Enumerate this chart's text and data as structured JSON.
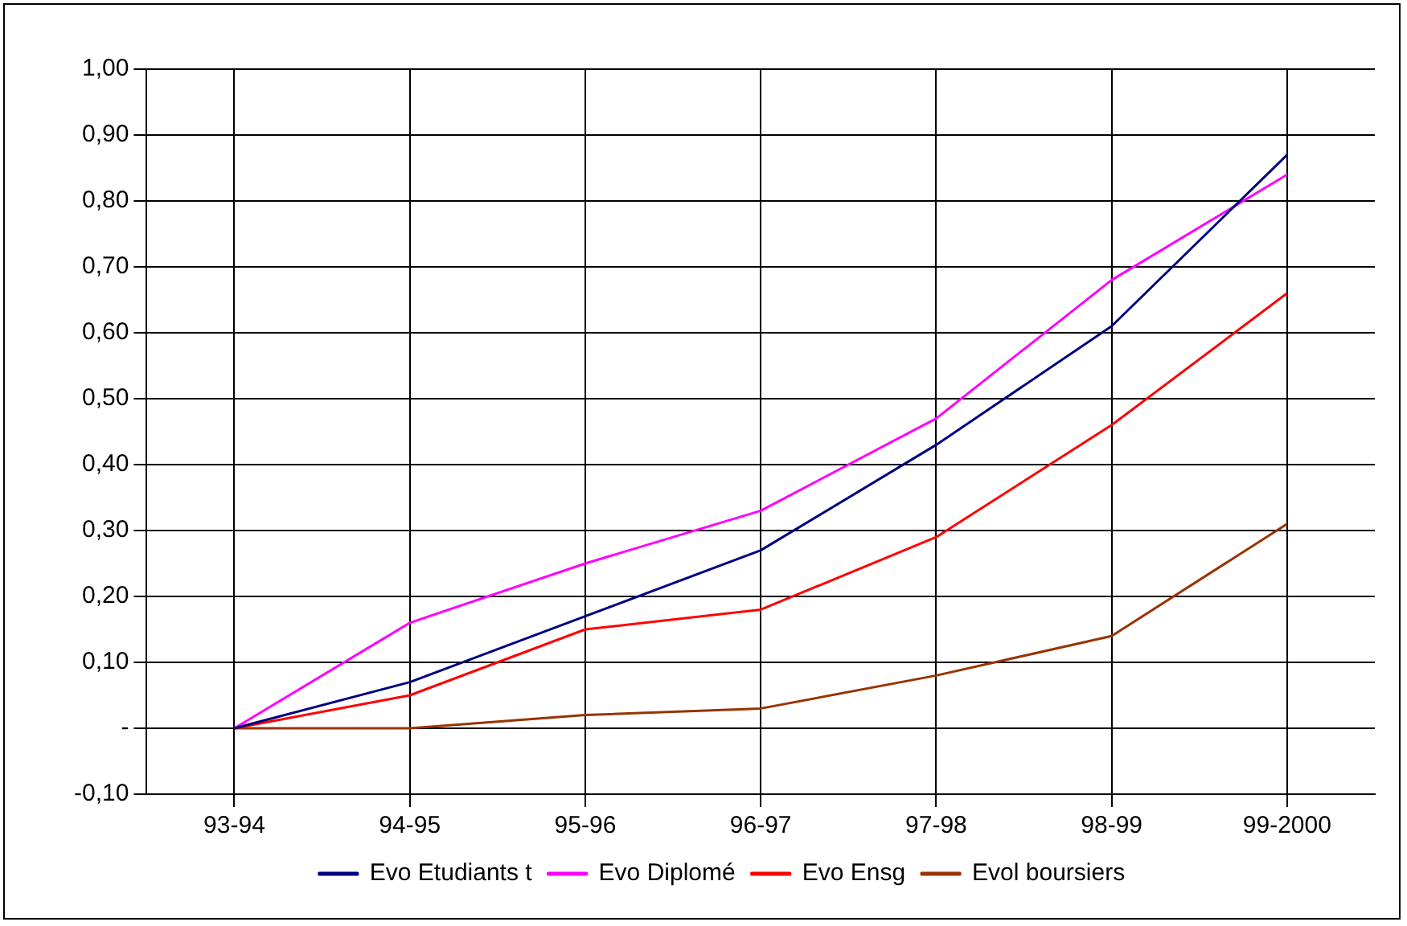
{
  "chart_data": {
    "type": "line",
    "categories": [
      "93-94",
      "94-95",
      "95-96",
      "96-97",
      "97-98",
      "98-99",
      "99-2000"
    ],
    "series": [
      {
        "name": "Evo Etudiants t",
        "color": "#000080",
        "values": [
          0,
          0.07,
          0.17,
          0.27,
          0.43,
          0.61,
          0.87
        ]
      },
      {
        "name": "Evo Diplomé",
        "color": "#ff00ff",
        "values": [
          0,
          0.16,
          0.25,
          0.33,
          0.47,
          0.68,
          0.84
        ]
      },
      {
        "name": "Evo Ensg",
        "color": "#ff0000",
        "values": [
          0,
          0.05,
          0.15,
          0.18,
          0.29,
          0.46,
          0.66
        ]
      },
      {
        "name": "Evol boursiers",
        "color": "#993300",
        "values": [
          0,
          0,
          0.02,
          0.03,
          0.08,
          0.14,
          0.31
        ]
      }
    ],
    "ylim": [
      -0.1,
      1
    ],
    "yticks": [
      {
        "value": -0.1,
        "label": "-0,10"
      },
      {
        "value": 0,
        "label": "-"
      },
      {
        "value": 0.1,
        "label": "0,10"
      },
      {
        "value": 0.2,
        "label": "0,20"
      },
      {
        "value": 0.3,
        "label": "0,30"
      },
      {
        "value": 0.4,
        "label": "0,40"
      },
      {
        "value": 0.5,
        "label": "0,50"
      },
      {
        "value": 0.6,
        "label": "0,60"
      },
      {
        "value": 0.7,
        "label": "0,70"
      },
      {
        "value": 0.8,
        "label": "0,80"
      },
      {
        "value": 0.9,
        "label": "0,90"
      },
      {
        "value": 1,
        "label": "1,00"
      }
    ],
    "grid": true,
    "legend": "bottom",
    "marker": "none",
    "line_style": "solid"
  }
}
